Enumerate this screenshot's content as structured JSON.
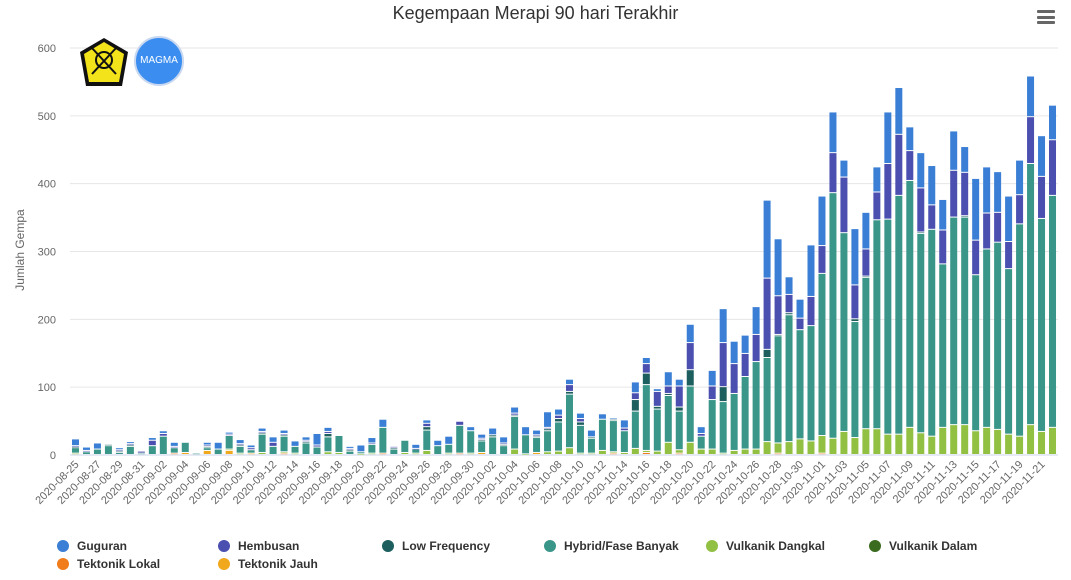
{
  "chart_data": {
    "type": "bar",
    "stacked": true,
    "title": "Kegempaan Merapi 90 hari Terakhir",
    "xlabel": "",
    "ylabel": "Jumlah Gempa",
    "ylim": [
      0,
      600
    ],
    "yticks": [
      "0",
      "100",
      "200",
      "300",
      "400",
      "500",
      "600"
    ],
    "grid": true,
    "legend_position": "bottom",
    "logos": [
      "ESDM",
      "MAGMA INDONESIA"
    ],
    "start_date": "2020-08-25",
    "x_tick_labels": [
      "2020-08-25",
      "2020-08-27",
      "2020-08-29",
      "2020-08-31",
      "2020-09-02",
      "2020-09-04",
      "2020-09-06",
      "2020-09-08",
      "2020-09-10",
      "2020-09-12",
      "2020-09-14",
      "2020-09-16",
      "2020-09-18",
      "2020-09-20",
      "2020-09-22",
      "2020-09-24",
      "2020-09-26",
      "2020-09-28",
      "2020-09-30",
      "2020-10-02",
      "2020-10-04",
      "2020-10-06",
      "2020-10-08",
      "2020-10-10",
      "2020-10-12",
      "2020-10-14",
      "2020-10-16",
      "2020-10-18",
      "2020-10-20",
      "2020-10-22",
      "2020-10-24",
      "2020-10-26",
      "2020-10-28",
      "2020-10-30",
      "2020-11-01",
      "2020-11-03",
      "2020-11-05",
      "2020-11-07",
      "2020-11-09",
      "2020-11-11",
      "2020-11-13",
      "2020-11-15",
      "2020-11-17",
      "2020-11-19",
      "2020-11-21"
    ],
    "series": [
      {
        "name": "Guguran",
        "color": "#3a7fd5",
        "values": [
          10,
          5,
          9,
          0,
          3,
          3,
          0,
          4,
          4,
          6,
          0,
          0,
          4,
          10,
          3,
          6,
          4,
          5,
          8,
          5,
          8,
          5,
          17,
          6,
          0,
          3,
          10,
          8,
          12,
          0,
          0,
          6,
          5,
          8,
          12,
          0,
          6,
          6,
          10,
          9,
          9,
          12,
          7,
          23,
          9,
          8,
          8,
          10,
          8,
          2,
          12,
          16,
          9,
          4,
          21,
          10,
          27,
          10,
          23,
          50,
          33,
          27,
          41,
          115,
          84,
          26,
          28,
          76,
          73,
          60,
          25,
          83,
          54,
          37,
          76,
          69,
          35,
          52,
          58,
          45,
          58,
          38,
          91,
          68,
          60,
          67,
          51,
          60,
          60,
          51
        ]
      },
      {
        "name": "Hembusan",
        "color": "#4a4fb0",
        "values": [
          2,
          2,
          0,
          0,
          2,
          2,
          3,
          8,
          4,
          2,
          0,
          0,
          2,
          0,
          2,
          2,
          3,
          2,
          6,
          2,
          0,
          2,
          3,
          3,
          0,
          2,
          0,
          2,
          0,
          2,
          0,
          1,
          5,
          0,
          0,
          6,
          0,
          2,
          0,
          2,
          3,
          0,
          2,
          2,
          5,
          10,
          5,
          0,
          0,
          0,
          4,
          10,
          14,
          22,
          11,
          31,
          40,
          4,
          20,
          65,
          44,
          34,
          40,
          105,
          57,
          27,
          17,
          43,
          41,
          59,
          82,
          50,
          40,
          41,
          82,
          90,
          44,
          65,
          36,
          50,
          69,
          64,
          51,
          53,
          44,
          40,
          43,
          69,
          62,
          82
        ]
      },
      {
        "name": "Low Frequency",
        "color": "#1d5e5e",
        "values": [
          1,
          0,
          0,
          2,
          2,
          2,
          0,
          0,
          0,
          0,
          0,
          0,
          2,
          0,
          0,
          2,
          0,
          2,
          0,
          2,
          0,
          2,
          0,
          5,
          0,
          2,
          0,
          0,
          0,
          2,
          0,
          0,
          5,
          0,
          0,
          0,
          0,
          2,
          3,
          2,
          2,
          0,
          2,
          3,
          5,
          4,
          5,
          2,
          0,
          2,
          0,
          17,
          17,
          4,
          3,
          6,
          24,
          0,
          0,
          22,
          0,
          0,
          0,
          12,
          2,
          3,
          0,
          0,
          0,
          0,
          0,
          4,
          2,
          0,
          0,
          0,
          0,
          2,
          0,
          0,
          0,
          2,
          0,
          0,
          0,
          0,
          0,
          0,
          0,
          0
        ]
      },
      {
        "name": "Hybrid/Fase Banyak",
        "color": "#3a9688",
        "values": [
          8,
          4,
          8,
          13,
          3,
          12,
          2,
          13,
          27,
          8,
          15,
          2,
          4,
          8,
          20,
          10,
          5,
          27,
          12,
          23,
          10,
          17,
          11,
          22,
          25,
          5,
          3,
          13,
          38,
          8,
          18,
          6,
          30,
          13,
          13,
          41,
          33,
          17,
          26,
          13,
          48,
          28,
          22,
          31,
          43,
          79,
          41,
          22,
          46,
          46,
          32,
          55,
          97,
          62,
          69,
          57,
          83,
          19,
          73,
          76,
          84,
          107,
          129,
          124,
          158,
          187,
          161,
          170,
          239,
          362,
          293,
          171,
          223,
          308,
          317,
          352,
          364,
          294,
          305,
          241,
          306,
          306,
          230,
          263,
          276,
          244,
          313,
          385,
          314,
          342
        ]
      },
      {
        "name": "Vulkanik Dangkal",
        "color": "#92c043",
        "values": [
          2,
          0,
          0,
          0,
          0,
          0,
          0,
          0,
          0,
          0,
          0,
          0,
          0,
          0,
          2,
          2,
          0,
          3,
          0,
          2,
          2,
          0,
          0,
          4,
          3,
          0,
          1,
          2,
          0,
          0,
          3,
          2,
          6,
          0,
          2,
          0,
          2,
          0,
          0,
          0,
          8,
          1,
          0,
          4,
          5,
          10,
          2,
          2,
          6,
          2,
          3,
          9,
          3,
          5,
          18,
          5,
          18,
          8,
          8,
          2,
          6,
          8,
          8,
          19,
          15,
          19,
          23,
          20,
          26,
          24,
          34,
          25,
          38,
          38,
          30,
          30,
          40,
          32,
          27,
          40,
          44,
          44,
          35,
          40,
          37,
          30,
          27,
          44,
          34,
          40
        ]
      },
      {
        "name": "Vulkanik Dalam",
        "color": "#3a6b1e",
        "values": [
          0,
          0,
          0,
          0,
          0,
          0,
          0,
          0,
          0,
          0,
          0,
          0,
          0,
          0,
          0,
          0,
          0,
          0,
          0,
          0,
          0,
          0,
          0,
          0,
          0,
          0,
          0,
          0,
          0,
          0,
          0,
          0,
          0,
          0,
          0,
          0,
          0,
          0,
          0,
          0,
          0,
          0,
          0,
          0,
          0,
          0,
          0,
          0,
          0,
          0,
          0,
          0,
          0,
          0,
          0,
          0,
          0,
          0,
          0,
          0,
          0,
          0,
          0,
          0,
          0,
          0,
          0,
          0,
          0,
          0,
          0,
          0,
          0,
          0,
          0,
          0,
          0,
          0,
          0,
          0,
          0,
          0,
          0,
          0,
          0,
          0,
          0,
          0,
          0,
          0
        ]
      },
      {
        "name": "Tektonik Lokal",
        "color": "#f07c1c",
        "values": [
          0,
          0,
          0,
          0,
          0,
          0,
          0,
          0,
          0,
          2,
          0,
          0,
          0,
          0,
          0,
          0,
          0,
          0,
          0,
          2,
          0,
          0,
          0,
          0,
          0,
          0,
          0,
          0,
          2,
          0,
          0,
          0,
          0,
          0,
          0,
          2,
          0,
          0,
          0,
          0,
          0,
          0,
          0,
          0,
          0,
          0,
          0,
          0,
          0,
          2,
          0,
          0,
          3,
          0,
          0,
          2,
          0,
          0,
          0,
          0,
          0,
          0,
          0,
          0,
          2,
          0,
          0,
          0,
          2,
          0,
          0,
          0,
          0,
          0,
          0,
          0,
          0,
          0,
          0,
          0,
          0,
          0,
          0,
          0,
          0,
          0,
          0,
          0,
          0,
          0
        ]
      },
      {
        "name": "Tektonik Jauh",
        "color": "#f0a81c",
        "values": [
          0,
          0,
          0,
          0,
          0,
          0,
          0,
          0,
          0,
          0,
          3,
          0,
          6,
          0,
          6,
          0,
          2,
          0,
          0,
          0,
          0,
          0,
          0,
          0,
          0,
          0,
          0,
          0,
          0,
          0,
          0,
          0,
          0,
          0,
          0,
          0,
          0,
          3,
          0,
          0,
          0,
          0,
          3,
          0,
          0,
          0,
          0,
          0,
          0,
          0,
          0,
          0,
          0,
          0,
          0,
          0,
          0,
          0,
          0,
          0,
          0,
          0,
          0,
          0,
          0,
          0,
          0,
          0,
          0,
          0,
          0,
          0,
          0,
          0,
          0,
          0,
          0,
          0,
          0,
          0,
          0,
          0,
          0,
          0,
          0,
          0,
          0,
          0,
          0,
          0
        ]
      }
    ]
  }
}
